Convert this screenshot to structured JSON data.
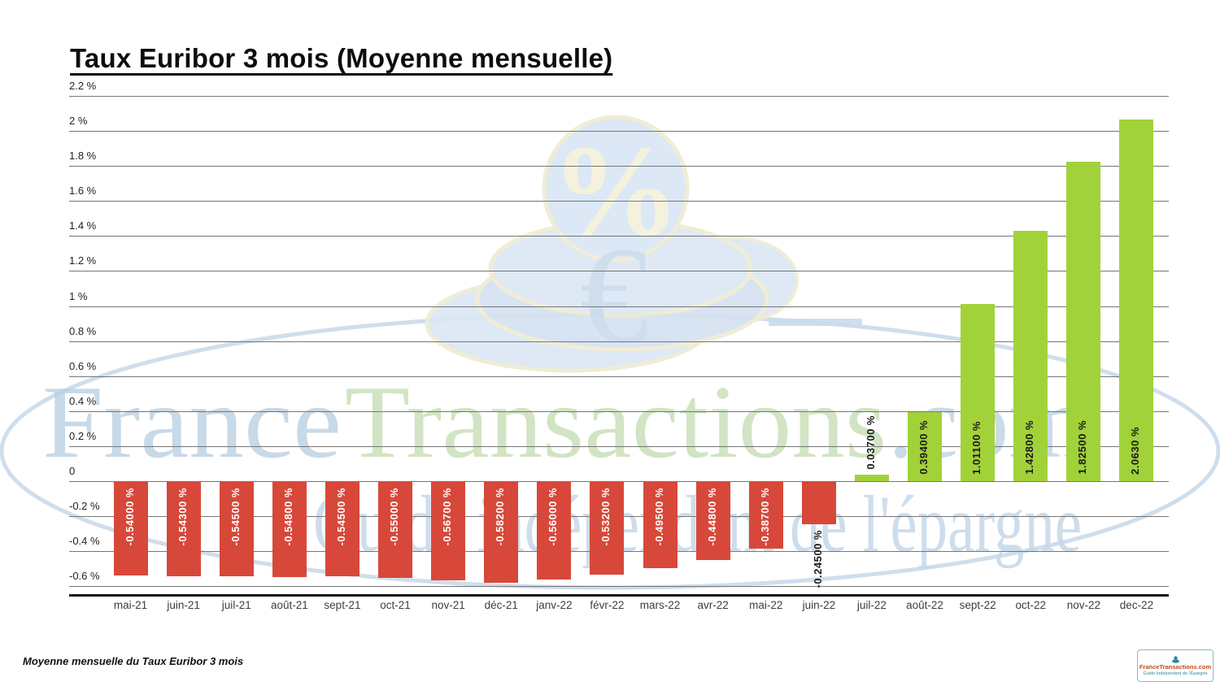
{
  "page": {
    "title": "Taux Euribor 3 mois (Moyenne mensuelle)",
    "footnote": "Moyenne mensuelle du Taux Euribor 3 mois"
  },
  "watermark": {
    "line1_parts": {
      "part1": "France",
      "part2": "Transactions",
      "part3": ".com"
    },
    "line2": "Guide indépendant de l'épargne",
    "percent_symbol": "%",
    "euro_symbol": "€"
  },
  "logo_badge": {
    "title": "FranceTransactions.com",
    "subtitle": "Guide Indépendant de l'Épargne"
  },
  "chart_data": {
    "type": "bar",
    "title": "Taux Euribor 3 mois (Moyenne mensuelle)",
    "categories": [
      "mai-21",
      "juin-21",
      "juil-21",
      "août-21",
      "sept-21",
      "oct-21",
      "nov-21",
      "déc-21",
      "janv-22",
      "févr-22",
      "mars-22",
      "avr-22",
      "mai-22",
      "juin-22",
      "juil-22",
      "août-22",
      "sept-22",
      "oct-22",
      "nov-22",
      "dec-22"
    ],
    "values": [
      -0.54,
      -0.543,
      -0.545,
      -0.548,
      -0.545,
      -0.55,
      -0.567,
      -0.582,
      -0.56,
      -0.532,
      -0.495,
      -0.448,
      -0.387,
      -0.245,
      0.037,
      0.394,
      1.011,
      1.428,
      1.825,
      2.063
    ],
    "value_labels": [
      "-0.54000 %",
      "-0.54300 %",
      "-0.54500 %",
      "-0.54800 %",
      "-0.54500 %",
      "-0.55000 %",
      "-0.56700 %",
      "-0.58200 %",
      "-0.56000 %",
      "-0.53200 %",
      "-0.49500 %",
      "-0.44800 %",
      "-0.38700 %",
      "-0.24500 %",
      "0.03700 %",
      "0.39400 %",
      "1.01100 %",
      "1.42800 %",
      "1.82500 %",
      "2.0630 %"
    ],
    "ytick_labels": [
      "2.2 %",
      "2 %",
      "1.8 %",
      "1.6 %",
      "1.4 %",
      "1.2 %",
      "1 %",
      "0.8 %",
      "0.6 %",
      "0.4 %",
      "0.2 %",
      "0",
      "-0.2 %",
      "-0.4 %",
      "-0.6 %"
    ],
    "ylim": [
      -0.6,
      2.2
    ],
    "ymax": 2.2,
    "ystep": 0.2,
    "grid": true,
    "legend": "none",
    "xlabel": "",
    "ylabel": "",
    "colors": {
      "negative": "#d7483a",
      "positive": "#a2d239"
    }
  }
}
